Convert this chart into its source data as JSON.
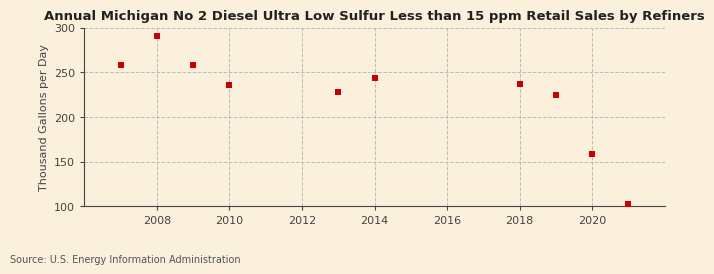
{
  "title": "Annual Michigan No 2 Diesel Ultra Low Sulfur Less than 15 ppm Retail Sales by Refiners",
  "ylabel": "Thousand Gallons per Day",
  "source": "Source: U.S. Energy Information Administration",
  "x_values": [
    2007,
    2008,
    2009,
    2010,
    2013,
    2014,
    2018,
    2019,
    2020,
    2021
  ],
  "y_values": [
    258,
    291,
    258,
    236,
    228,
    243,
    237,
    224,
    158,
    103
  ],
  "marker_color": "#CC0000",
  "marker": "s",
  "marker_size": 4,
  "xlim": [
    2006.0,
    2022.0
  ],
  "ylim": [
    100,
    300
  ],
  "yticks": [
    100,
    150,
    200,
    250,
    300
  ],
  "xticks": [
    2008,
    2010,
    2012,
    2014,
    2016,
    2018,
    2020
  ],
  "background_color": "#FAF0DC",
  "grid_color": "#BBBBBB",
  "title_fontsize": 9.5,
  "label_fontsize": 8,
  "tick_fontsize": 8,
  "source_fontsize": 7
}
